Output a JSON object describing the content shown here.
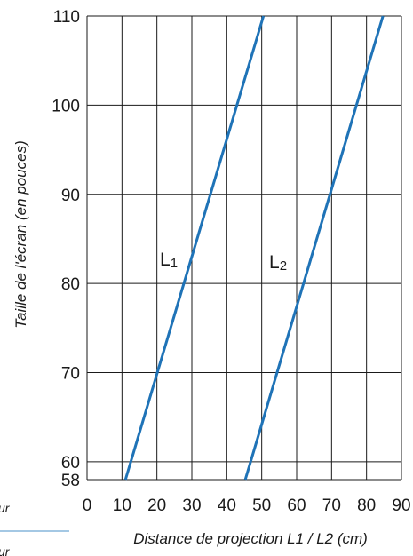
{
  "chart_data": {
    "type": "line",
    "title": "",
    "xlabel": "Distance de projection L1 / L2 (cm)",
    "ylabel": "Taille de l'écran (en pouces)",
    "xlim": [
      0,
      90
    ],
    "ylim": [
      58,
      110
    ],
    "xticks": [
      "0",
      "10",
      "20",
      "30",
      "40",
      "50",
      "60",
      "70",
      "80",
      "90"
    ],
    "yticks": [
      "58",
      "60",
      "70",
      "80",
      "90",
      "100",
      "110"
    ],
    "grid": true,
    "series": [
      {
        "name": "L1",
        "base": "L",
        "sub": "1",
        "color": "#1f73b7",
        "x": [
          11.0,
          50.5
        ],
        "y": [
          58,
          110
        ]
      },
      {
        "name": "L2",
        "base": "L",
        "sub": "2",
        "color": "#1f73b7",
        "x": [
          45.3,
          84.7
        ],
        "y": [
          58,
          110
        ]
      }
    ]
  },
  "cropped_text": [
    "ur",
    "ur"
  ]
}
